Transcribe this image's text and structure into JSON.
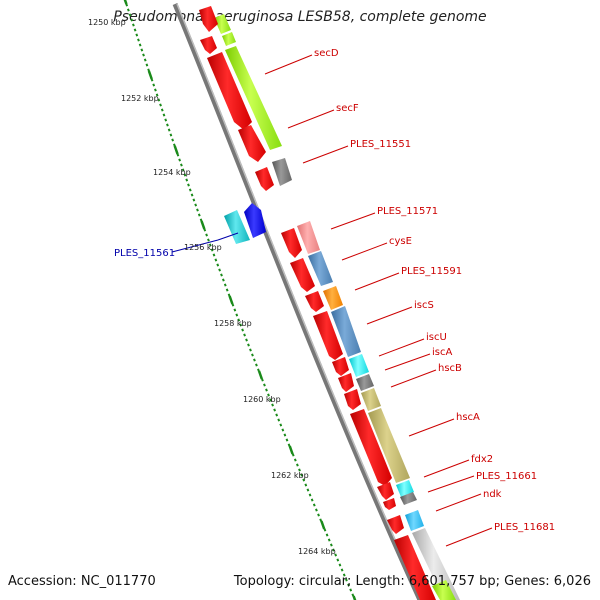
{
  "title": "Pseudomonas aeruginosa LESB58, complete genome",
  "footer": {
    "accession": "Accession: NC_011770",
    "summary": "Topology: circular; Length: 6,601,757 bp; Genes: 6,026"
  },
  "scale_labels": [
    "1250 kbp",
    "1252 kbp",
    "1254 kbp",
    "1256 kbp",
    "1258 kbp",
    "1260 kbp",
    "1262 kbp",
    "1264 kbp"
  ],
  "genes": [
    {
      "name": "secD",
      "color": "#cc0000"
    },
    {
      "name": "secF",
      "color": "#cc0000"
    },
    {
      "name": "PLES_11551",
      "color": "#cc0000"
    },
    {
      "name": "PLES_11561",
      "color": "#0000aa"
    },
    {
      "name": "PLES_11571",
      "color": "#cc0000"
    },
    {
      "name": "cysE",
      "color": "#cc0000"
    },
    {
      "name": "PLES_11591",
      "color": "#cc0000"
    },
    {
      "name": "iscS",
      "color": "#cc0000"
    },
    {
      "name": "iscU",
      "color": "#cc0000"
    },
    {
      "name": "iscA",
      "color": "#cc0000"
    },
    {
      "name": "hscB",
      "color": "#cc0000"
    },
    {
      "name": "hscA",
      "color": "#cc0000"
    },
    {
      "name": "fdx2",
      "color": "#cc0000"
    },
    {
      "name": "PLES_11661",
      "color": "#cc0000"
    },
    {
      "name": "ndk",
      "color": "#cc0000"
    },
    {
      "name": "PLES_11681",
      "color": "#cc0000"
    }
  ]
}
